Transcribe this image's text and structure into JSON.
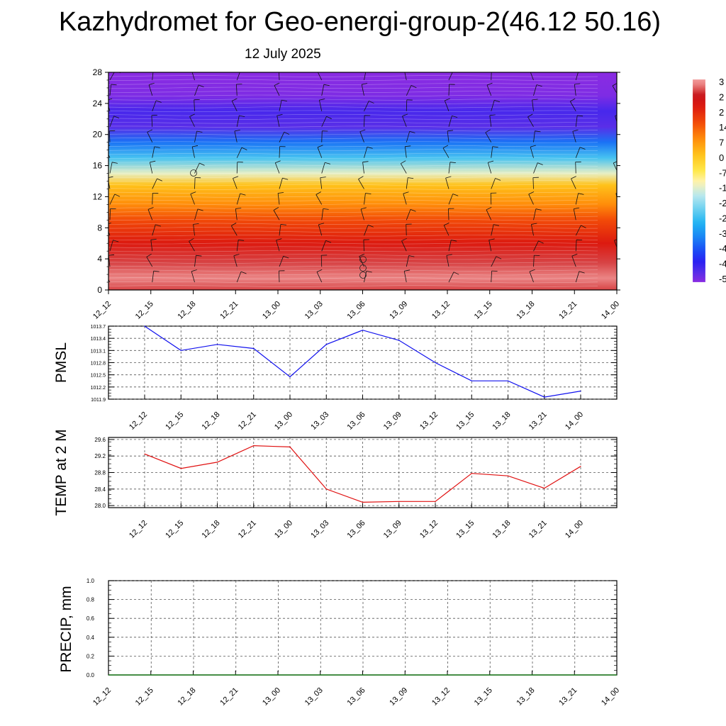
{
  "title": "Kazhydromet for Geo-energi-group-2(46.12 50.16)",
  "subtitle": "12 July 2025",
  "time_labels": [
    "12_12",
    "12_15",
    "12_18",
    "12_21",
    "13_00",
    "13_03",
    "13_06",
    "13_09",
    "13_12",
    "13_15",
    "13_18",
    "13_21",
    "14_00"
  ],
  "colors": {
    "pmsl_line": "#1010ee",
    "temp_line": "#e01010",
    "precip_line": "#1a7a1a",
    "grid": "#555555"
  },
  "chart_data": [
    {
      "type": "heatmap",
      "title": "",
      "xlabel": "",
      "ylabel": "",
      "x": [
        "12_12",
        "12_15",
        "12_18",
        "12_21",
        "13_00",
        "13_03",
        "13_06",
        "13_09",
        "13_12",
        "13_15",
        "13_18",
        "13_21",
        "14_00"
      ],
      "yticks": [
        0,
        4,
        8,
        12,
        16,
        20,
        24,
        28
      ],
      "ylim": [
        0,
        28
      ],
      "colorbar_labels": [
        "3",
        "2",
        "2",
        "14",
        "7",
        "0",
        "-7",
        "-1",
        "-2",
        "-2",
        "-3",
        "-4",
        "-4",
        "-5"
      ],
      "temperature_profile": [
        {
          "level": 0,
          "value": 28
        },
        {
          "level": 1.5,
          "value": 31
        },
        {
          "level": 3.5,
          "value": 28
        },
        {
          "level": 6,
          "value": 21
        },
        {
          "level": 9,
          "value": 14
        },
        {
          "level": 11,
          "value": 7
        },
        {
          "level": 13.5,
          "value": 0
        },
        {
          "level": 15,
          "value": -14
        },
        {
          "level": 17,
          "value": -27
        },
        {
          "level": 19,
          "value": -38
        },
        {
          "level": 21,
          "value": -52
        },
        {
          "level": 23,
          "value": -50
        },
        {
          "level": 25,
          "value": -55
        },
        {
          "level": 28,
          "value": -56
        }
      ]
    },
    {
      "type": "line",
      "ylabel": "PMSL",
      "ylim": [
        1011.9,
        1013.7
      ],
      "yticks": [
        "1013.7",
        "1013.4",
        "1013.1",
        "1012.8",
        "1012.5",
        "1012.2",
        "1011.9"
      ],
      "categories": [
        "12_12",
        "12_15",
        "12_18",
        "12_21",
        "13_00",
        "13_03",
        "13_06",
        "13_09",
        "13_12",
        "13_15",
        "13_18",
        "13_21",
        "14_00"
      ],
      "series": [
        {
          "values": [
            1013.7,
            1013.1,
            1013.25,
            1013.15,
            1012.45,
            1013.25,
            1013.6,
            1013.35,
            1012.8,
            1012.35,
            1012.35,
            1011.95,
            1012.1
          ]
        }
      ]
    },
    {
      "type": "line",
      "ylabel": "TEMP at 2 M",
      "ylim": [
        27.95,
        29.65
      ],
      "yticks": [
        "29.6",
        "29.2",
        "28.8",
        "28.4",
        "28.0"
      ],
      "categories": [
        "12_12",
        "12_15",
        "12_18",
        "12_21",
        "13_00",
        "13_03",
        "13_06",
        "13_09",
        "13_12",
        "13_15",
        "13_18",
        "13_21",
        "14_00"
      ],
      "series": [
        {
          "values": [
            29.25,
            28.9,
            29.05,
            29.45,
            29.42,
            28.4,
            28.08,
            28.1,
            28.1,
            28.78,
            28.72,
            28.42,
            28.95
          ]
        }
      ]
    },
    {
      "type": "line",
      "ylabel": "PRECIP, mm",
      "ylim": [
        0,
        1
      ],
      "yticks": [
        "1.0",
        "0.8",
        "0.6",
        "0.4",
        "0.2",
        "0.0"
      ],
      "categories": [
        "12_12",
        "12_15",
        "12_18",
        "12_21",
        "13_00",
        "13_03",
        "13_06",
        "13_09",
        "13_12",
        "13_15",
        "13_18",
        "13_21",
        "14_00"
      ],
      "series": [
        {
          "values": [
            0,
            0,
            0,
            0,
            0,
            0,
            0,
            0,
            0,
            0,
            0,
            0,
            0
          ]
        }
      ]
    }
  ]
}
